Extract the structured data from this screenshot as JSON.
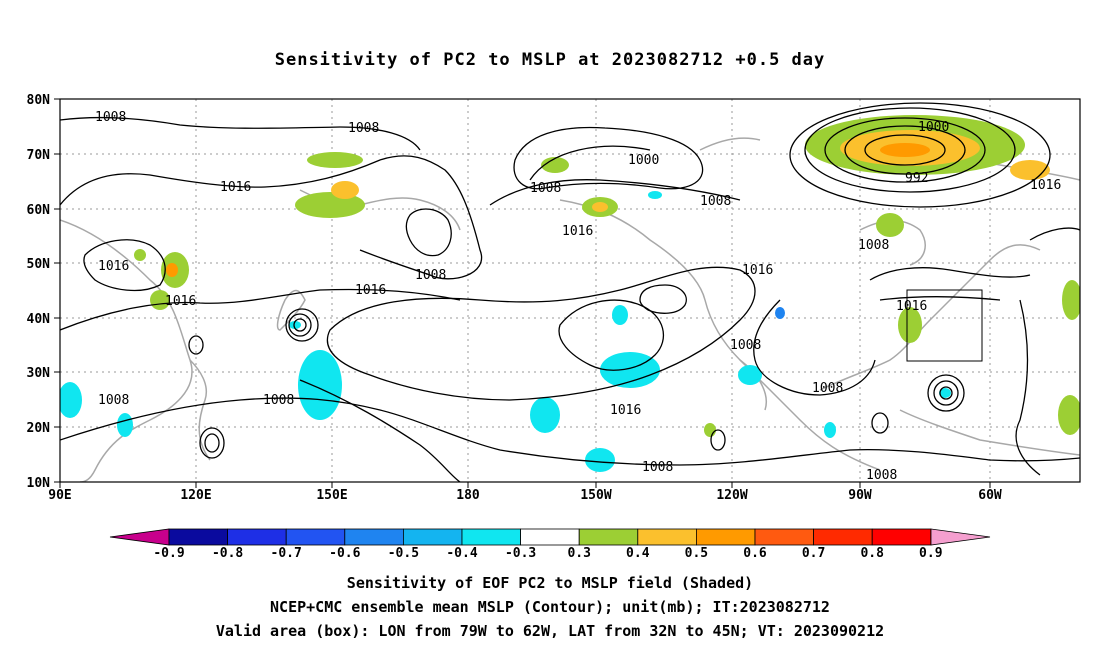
{
  "title": "Sensitivity of PC2 to MSLP at 2023082712 +0.5 day",
  "lat_labels": [
    "80N",
    "70N",
    "60N",
    "50N",
    "40N",
    "30N",
    "20N",
    "10N"
  ],
  "lon_labels": [
    "90E",
    "120E",
    "150E",
    "180",
    "150W",
    "120W",
    "90W",
    "60W"
  ],
  "contour_labels": [
    "1008",
    "1008",
    "1016",
    "1000",
    "1008",
    "1008",
    "1016",
    "1016",
    "1008",
    "1016",
    "1016",
    "1016",
    "1016",
    "1008",
    "1008",
    "1008",
    "1008",
    "1016",
    "1008",
    "1008",
    "1000",
    "992",
    "1016",
    "1008"
  ],
  "colorbar": {
    "labels": [
      "-0.9",
      "-0.8",
      "-0.7",
      "-0.6",
      "-0.5",
      "-0.4",
      "-0.3",
      "0.3",
      "0.4",
      "0.5",
      "0.6",
      "0.7",
      "0.8",
      "0.9"
    ],
    "colors": [
      "#0a0a9e",
      "#1e2fe6",
      "#2254f2",
      "#1f84f0",
      "#14b4f0",
      "#10e6f0",
      "#ffffff",
      "#9ccf34",
      "#fbc02d",
      "#ff9a00",
      "#ff5a10",
      "#ff2a00",
      "#ff0000"
    ],
    "low_extend_color": "#c8008c",
    "high_extend_color": "#f59fcf"
  },
  "valid_box": "LON from 79W to 62W, LAT from 32N to 45N",
  "captions": [
    "Sensitivity of EOF PC2 to MSLP field (Shaded)",
    "NCEP+CMC ensemble mean MSLP (Contour); unit(mb); IT:2023082712",
    "Valid area (box): LON from 79W to 62W, LAT from 32N to 45N; VT: 2023090212"
  ]
}
